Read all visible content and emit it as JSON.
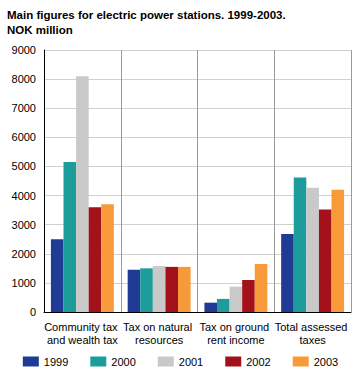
{
  "chart_data": {
    "type": "bar",
    "title": "Main figures for electric power stations. 1999-2003.",
    "subtitle": "NOK million",
    "categories": [
      "Community tax and wealth tax",
      "Tax on natural resources",
      "Tax on ground rent income",
      "Total assessed taxes"
    ],
    "series": [
      {
        "name": "1999",
        "color": "#1f3b96",
        "values": [
          2500,
          1450,
          320,
          2680
        ]
      },
      {
        "name": "2000",
        "color": "#1d9c9c",
        "values": [
          5150,
          1500,
          450,
          4620
        ]
      },
      {
        "name": "2001",
        "color": "#c9c9c9",
        "values": [
          8100,
          1580,
          870,
          4270
        ]
      },
      {
        "name": "2002",
        "color": "#a3121a",
        "values": [
          3600,
          1550,
          1100,
          3520
        ]
      },
      {
        "name": "2003",
        "color": "#f99a3a",
        "values": [
          3700,
          1550,
          1650,
          4200
        ]
      }
    ],
    "ylim": [
      0,
      9000
    ],
    "yticks": [
      0,
      1000,
      2000,
      3000,
      4000,
      5000,
      6000,
      7000,
      8000,
      9000
    ],
    "grid": true,
    "legend": "bottom"
  }
}
